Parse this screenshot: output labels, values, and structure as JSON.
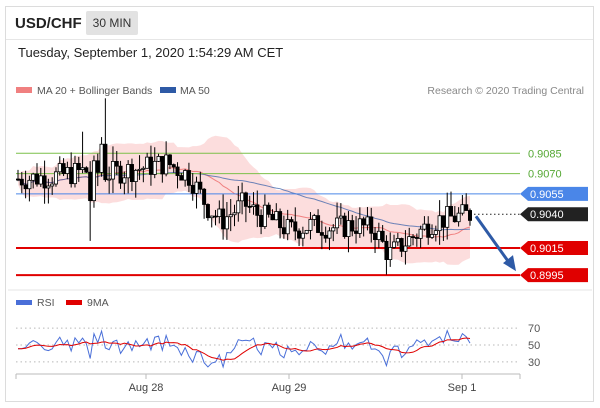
{
  "header": {
    "symbol": "USD/CHF",
    "timeframe": "30 MIN",
    "datetime": "Tuesday, September 1, 2020 1:54:29 AM CET"
  },
  "credit": "Research © 2020 Trading Central",
  "colors": {
    "bullish_candle": "#ffffff",
    "bearish_candle": "#000000",
    "ma20_bollinger": "#f08080",
    "bollinger_fill": "#fbd7d7",
    "ma50": "#2e5aa6",
    "target_level": "#7cc04a",
    "pivot_level": "#4a86e8",
    "support_level": "#e00000",
    "last_price_tag": "#222222",
    "forecast_arrow": "#2e5aa6",
    "rsi": "#4a6fd8",
    "rsi_ma": "#e00000"
  },
  "chart_data": [
    {
      "type": "candlestick",
      "title": "USD/CHF",
      "timeframe": "30 MIN",
      "legend": [
        {
          "name": "MA 20 + Bollinger Bands",
          "color": "#f08080"
        },
        {
          "name": "MA 50",
          "color": "#2e5aa6"
        }
      ],
      "legend_position": "top-left",
      "x_ticks": [
        "Aug 28",
        "Aug 29",
        "Sep 1"
      ],
      "ylim": [
        0.8984,
        0.9117
      ],
      "last_price": 0.904,
      "levels": [
        {
          "label": "0.9085",
          "value": 0.9085,
          "role": "target"
        },
        {
          "label": "0.9070",
          "value": 0.907,
          "role": "target"
        },
        {
          "label": "0.9055",
          "value": 0.9055,
          "role": "pivot"
        },
        {
          "label": "0.9040",
          "value": 0.904,
          "role": "last"
        },
        {
          "label": "0.9015",
          "value": 0.9015,
          "role": "support"
        },
        {
          "label": "0.8995",
          "value": 0.8995,
          "role": "support"
        }
      ],
      "forecast": {
        "direction": "down",
        "from": 0.904,
        "to": 0.8995
      },
      "grid": false
    },
    {
      "type": "line",
      "title": "",
      "legend": [
        {
          "name": "RSI",
          "color": "#4a6fd8"
        },
        {
          "name": "9MA",
          "color": "#e00000"
        }
      ],
      "legend_position": "top-left",
      "y_ticks": [
        "70",
        "50",
        "30"
      ],
      "reference_lines": [
        70,
        50,
        30
      ],
      "ylim": [
        18,
        82
      ],
      "x_ticks": [
        "Aug 28",
        "Aug 29",
        "Sep 1"
      ]
    }
  ]
}
